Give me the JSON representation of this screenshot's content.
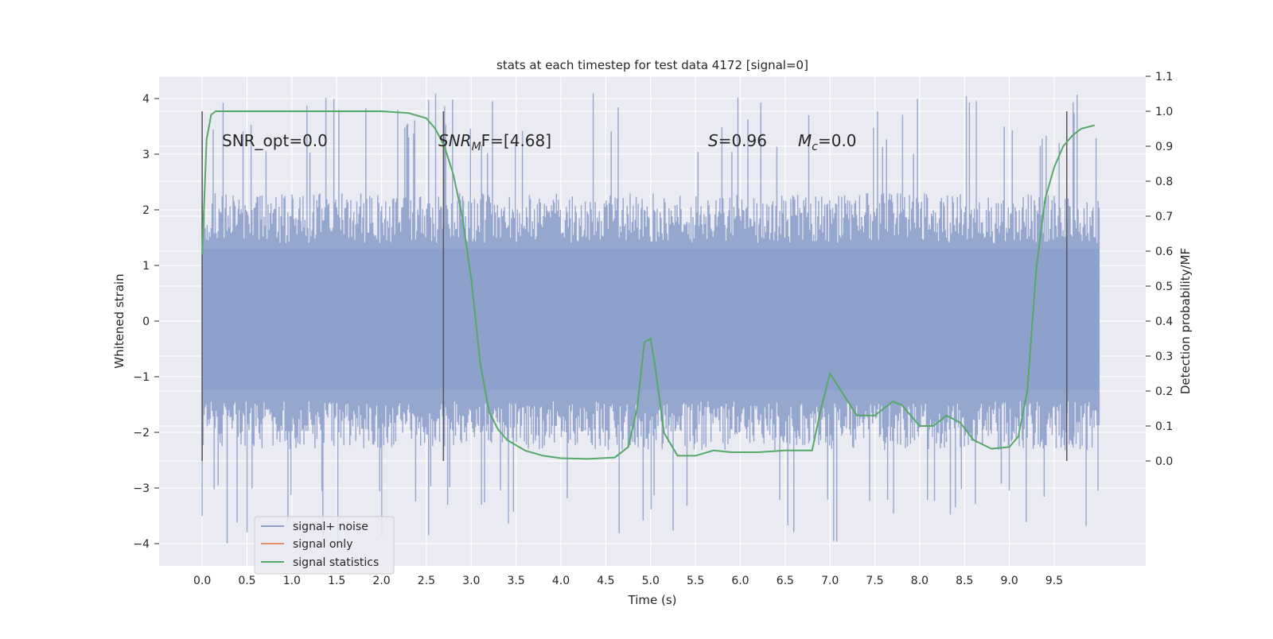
{
  "chart_data": {
    "type": "line",
    "title": "stats at each timestep for test data 4172 [signal=0]",
    "xlabel": "Time (s)",
    "ylabel": "Whitened strain",
    "ylabel_right": "Detection probability/MF",
    "xlim": [
      -0.48,
      10.52
    ],
    "ylim": [
      -4.4,
      4.4
    ],
    "ylim_right": [
      -0.3,
      1.1
    ],
    "x_ticks": [
      "0.0",
      "0.5",
      "1.0",
      "1.5",
      "2.0",
      "2.5",
      "3.0",
      "3.5",
      "4.0",
      "4.5",
      "5.0",
      "5.5",
      "6.0",
      "6.5",
      "7.0",
      "7.5",
      "8.0",
      "8.5",
      "9.0",
      "9.5"
    ],
    "y_ticks": [
      "4",
      "3",
      "2",
      "1",
      "0",
      "−1",
      "−2",
      "−3",
      "−4"
    ],
    "y_ticks_right": [
      "1.1",
      "1.0",
      "0.9",
      "0.8",
      "0.7",
      "0.6",
      "0.5",
      "0.4",
      "0.3",
      "0.2",
      "0.1",
      "0.0"
    ],
    "grid": true,
    "legend_position": "lower-left",
    "annotations": {
      "snr_opt": "SNR_opt=0.0",
      "snr_mf_main": "SNR",
      "snr_mf_sub": "M",
      "snr_mf_rest": "F=[4.68]",
      "s_var": "S",
      "s_rest": "=0.96",
      "mc_var": "M",
      "mc_sub": "c",
      "mc_rest": "=0.0"
    },
    "vertical_markers_x": [
      0.0,
      2.69,
      9.64
    ],
    "series": [
      {
        "name": "signal+ noise",
        "color": "#8da0cb",
        "axis": "left",
        "x_range": [
          0.0,
          10.0
        ],
        "typical_extent": [
          -1.6,
          2.0
        ],
        "approx_min": -4.0,
        "approx_max": 4.1,
        "style": "dense noise"
      },
      {
        "name": "signal only",
        "color": "#e78f6a",
        "axis": "left",
        "values": []
      },
      {
        "name": "signal statistics",
        "color": "#55a868",
        "axis": "right",
        "x": [
          0.0,
          0.05,
          0.1,
          0.15,
          0.2,
          0.3,
          0.5,
          1.0,
          1.5,
          2.0,
          2.3,
          2.5,
          2.6,
          2.7,
          2.8,
          2.9,
          3.0,
          3.1,
          3.2,
          3.3,
          3.4,
          3.6,
          3.8,
          4.0,
          4.3,
          4.6,
          4.75,
          4.85,
          4.93,
          5.0,
          5.05,
          5.15,
          5.3,
          5.5,
          5.7,
          5.9,
          6.2,
          6.5,
          6.8,
          6.9,
          7.0,
          7.1,
          7.3,
          7.5,
          7.7,
          7.8,
          8.0,
          8.15,
          8.3,
          8.45,
          8.6,
          8.8,
          9.0,
          9.1,
          9.2,
          9.3,
          9.4,
          9.5,
          9.6,
          9.7,
          9.8,
          9.95
        ],
        "values": [
          0.59,
          0.92,
          0.99,
          1.0,
          1.0,
          1.0,
          1.0,
          1.0,
          1.0,
          1.0,
          0.995,
          0.98,
          0.95,
          0.9,
          0.82,
          0.7,
          0.52,
          0.28,
          0.14,
          0.09,
          0.06,
          0.03,
          0.015,
          0.008,
          0.006,
          0.01,
          0.04,
          0.15,
          0.34,
          0.35,
          0.27,
          0.08,
          0.015,
          0.015,
          0.03,
          0.025,
          0.025,
          0.03,
          0.03,
          0.15,
          0.25,
          0.21,
          0.13,
          0.13,
          0.17,
          0.16,
          0.1,
          0.1,
          0.13,
          0.11,
          0.06,
          0.035,
          0.04,
          0.07,
          0.2,
          0.55,
          0.75,
          0.84,
          0.9,
          0.93,
          0.95,
          0.96
        ]
      }
    ]
  }
}
